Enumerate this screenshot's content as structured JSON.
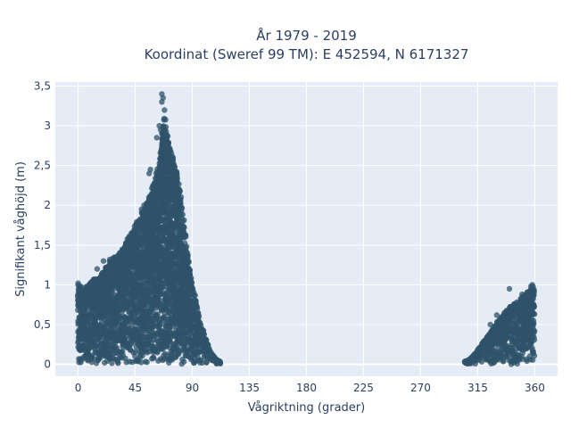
{
  "chart_data": {
    "type": "scatter",
    "title_line1": "År 1979 - 2019",
    "title_line2": "Koordinat (Sweref 99 TM): E 452594, N 6171327",
    "xlabel": "Vågriktning (grader)",
    "ylabel": "Signifikant våghöjd (m)",
    "xlim": [
      -18,
      378
    ],
    "ylim": [
      -0.15,
      3.55
    ],
    "xticks": [
      0,
      45,
      90,
      135,
      180,
      225,
      270,
      315,
      360
    ],
    "xtick_labels": [
      "0",
      "45",
      "90",
      "135",
      "180",
      "225",
      "270",
      "315",
      "360"
    ],
    "yticks": [
      0,
      0.5,
      1,
      1.5,
      2,
      2.5,
      3,
      3.5
    ],
    "ytick_labels": [
      "0",
      "0,5",
      "1",
      "1,5",
      "2",
      "2,5",
      "3",
      "3,5"
    ],
    "grid": true,
    "background_color": "#e5ecf6",
    "marker_color": "#2f5369",
    "envelope": [
      [
        0,
        1.0
      ],
      [
        5,
        0.95
      ],
      [
        10,
        1.05
      ],
      [
        15,
        1.1
      ],
      [
        20,
        1.2
      ],
      [
        25,
        1.3
      ],
      [
        30,
        1.38
      ],
      [
        35,
        1.45
      ],
      [
        40,
        1.6
      ],
      [
        45,
        1.75
      ],
      [
        50,
        1.9
      ],
      [
        55,
        2.05
      ],
      [
        60,
        2.3
      ],
      [
        63,
        2.5
      ],
      [
        65,
        2.7
      ],
      [
        67,
        3.0
      ],
      [
        68,
        3.2
      ],
      [
        70,
        2.95
      ],
      [
        72,
        2.75
      ],
      [
        75,
        2.6
      ],
      [
        78,
        2.4
      ],
      [
        80,
        2.2
      ],
      [
        83,
        1.9
      ],
      [
        85,
        1.6
      ],
      [
        88,
        1.2
      ],
      [
        90,
        1.0
      ],
      [
        93,
        0.8
      ],
      [
        96,
        0.55
      ],
      [
        100,
        0.35
      ],
      [
        104,
        0.18
      ],
      [
        108,
        0.08
      ],
      [
        112,
        0.03
      ],
      [
        305,
        0.03
      ],
      [
        310,
        0.08
      ],
      [
        315,
        0.18
      ],
      [
        320,
        0.3
      ],
      [
        325,
        0.4
      ],
      [
        330,
        0.52
      ],
      [
        335,
        0.63
      ],
      [
        340,
        0.72
      ],
      [
        345,
        0.78
      ],
      [
        350,
        0.85
      ],
      [
        355,
        0.92
      ],
      [
        360,
        1.0
      ]
    ],
    "outliers": [
      [
        66,
        3.4
      ],
      [
        67,
        3.35
      ],
      [
        66,
        3.3
      ],
      [
        64,
        3.0
      ],
      [
        65,
        2.95
      ],
      [
        62,
        2.85
      ],
      [
        57,
        2.45
      ],
      [
        56,
        2.4
      ],
      [
        52,
        2.0
      ],
      [
        50,
        1.95
      ],
      [
        42,
        1.65
      ],
      [
        40,
        1.5
      ],
      [
        37,
        1.45
      ],
      [
        30,
        1.35
      ],
      [
        25,
        1.32
      ],
      [
        20,
        1.3
      ],
      [
        15,
        1.2
      ],
      [
        0,
        1.02
      ],
      [
        305,
        0.04
      ],
      [
        340,
        0.95
      ],
      [
        350,
        0.88
      ],
      [
        357,
        0.98
      ],
      [
        358,
        1.0
      ],
      [
        359,
        0.92
      ],
      [
        330,
        0.62
      ],
      [
        325,
        0.5
      ]
    ]
  }
}
